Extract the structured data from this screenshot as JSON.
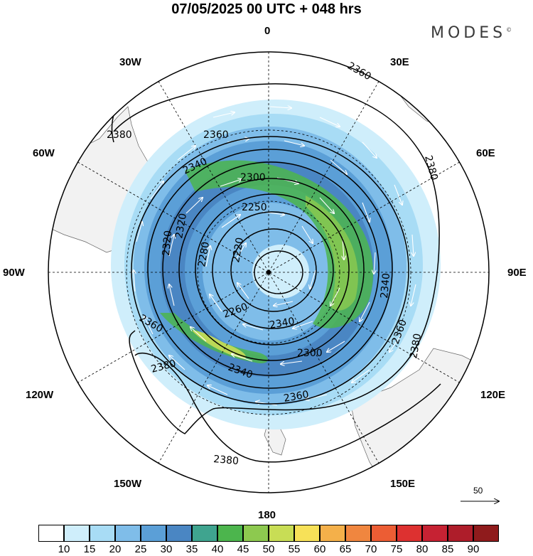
{
  "title": "07/05/2025  00 UTC  + 048 hrs",
  "brand": "MODES",
  "brand_mark": "©",
  "longitude_labels": {
    "top": "0",
    "bottom": "180",
    "left": "90W",
    "right": "90E",
    "nw1": "30W",
    "nw2": "60W",
    "ne1": "30E",
    "ne2": "60E",
    "sw1": "120W",
    "sw2": "150W",
    "se1": "120E",
    "se2": "150E"
  },
  "contour_labels": [
    "2220",
    "2250",
    "2260",
    "2280",
    "2300",
    "2320",
    "2340",
    "2360",
    "2380"
  ],
  "colors": {
    "land": "#f2f2f2",
    "jet_core": "#5cb85c",
    "jet_max": "#e2e25a",
    "vector": "#ffffff",
    "contour": "#000000"
  },
  "vector_reference": {
    "label": "50"
  },
  "colorbar": {
    "ticks": [
      "10",
      "15",
      "20",
      "25",
      "30",
      "35",
      "40",
      "45",
      "50",
      "55",
      "60",
      "65",
      "70",
      "75",
      "80",
      "85",
      "90"
    ],
    "colors": [
      "#ffffff",
      "#cfeefb",
      "#a8dcf5",
      "#7fbde9",
      "#5b9fd7",
      "#4a86c3",
      "#3fa48f",
      "#4cb54d",
      "#8dc94f",
      "#c8dd55",
      "#f7e158",
      "#f4b04a",
      "#f0863f",
      "#ec5d34",
      "#dd3130",
      "#c62233",
      "#ae1d2a",
      "#8f1b1c"
    ]
  }
}
